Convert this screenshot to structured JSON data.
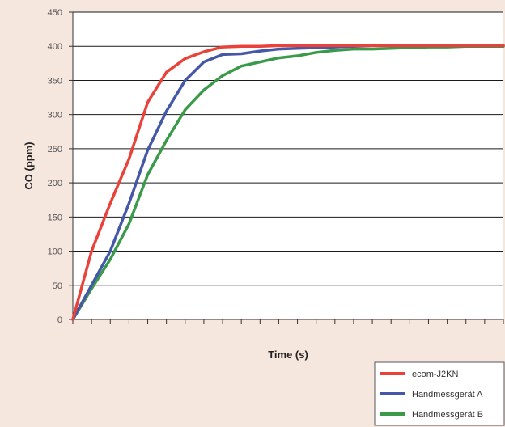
{
  "chart_data": {
    "type": "line",
    "title": "",
    "xlabel": "Time (s)",
    "ylabel": "CO (ppm)",
    "ylim": [
      0,
      450
    ],
    "yticks": [
      0,
      50,
      100,
      150,
      200,
      250,
      300,
      350,
      400,
      450
    ],
    "grid": true,
    "legend_position": "bottom-right",
    "x": [
      0,
      1,
      2,
      3,
      4,
      5,
      6,
      7,
      8,
      9,
      10,
      11,
      12,
      13,
      14,
      15,
      16,
      17,
      18,
      19,
      20,
      21,
      22,
      23
    ],
    "series": [
      {
        "name": "ecom-J2KN",
        "color": "#e8423a",
        "values": [
          0,
          100,
          170,
          235,
          318,
          362,
          382,
          392,
          399,
          400,
          400,
          401,
          401,
          401,
          401,
          401,
          401,
          401,
          401,
          401,
          401,
          401,
          401,
          401
        ]
      },
      {
        "name": "Handmessgerät A",
        "color": "#4558a8",
        "values": [
          0,
          50,
          100,
          170,
          248,
          305,
          350,
          377,
          388,
          389,
          393,
          396,
          397,
          398,
          399,
          400,
          401,
          401,
          401,
          401,
          401,
          401,
          401,
          401
        ]
      },
      {
        "name": "Handmessgerät B",
        "color": "#3a9a4a",
        "values": [
          0,
          45,
          88,
          140,
          212,
          262,
          307,
          336,
          357,
          371,
          377,
          383,
          386,
          391,
          394,
          396,
          396,
          397,
          398,
          399,
          399,
          400,
          400,
          400
        ]
      }
    ]
  }
}
